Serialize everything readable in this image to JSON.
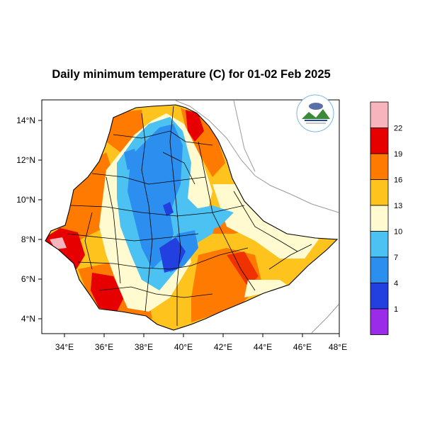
{
  "title": "Daily minimum temperature (C) for 01-02 Feb 2025",
  "map": {
    "lon_ticks": [
      "34°E",
      "36°E",
      "38°E",
      "40°E",
      "42°E",
      "44°E",
      "46°E",
      "48°E"
    ],
    "lat_ticks": [
      "14°N",
      "12°N",
      "10°N",
      "8°N",
      "6°N",
      "4°N"
    ],
    "lon_range": [
      33,
      48
    ],
    "lat_range": [
      3.2,
      15
    ]
  },
  "colorbar": {
    "labels": [
      "1",
      "4",
      "7",
      "10",
      "13",
      "16",
      "19",
      "22"
    ],
    "colors": [
      "#9a2be8",
      "#2240e0",
      "#2c8ff0",
      "#4cc2f2",
      "#fffad0",
      "#ffc31e",
      "#ff7a00",
      "#e60000",
      "#f8b4bd"
    ]
  },
  "logo": {
    "alt": "Ethiopian Meteorology Institute"
  }
}
